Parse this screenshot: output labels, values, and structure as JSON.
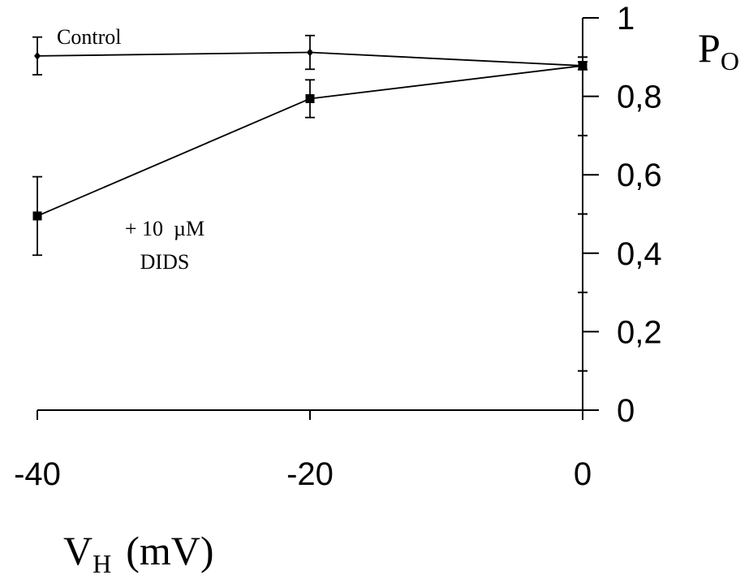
{
  "chart_data": {
    "type": "line",
    "x": [
      -40,
      -20,
      0
    ],
    "xlim": [
      -40,
      0
    ],
    "ylim": [
      0,
      1
    ],
    "x_tick_labels": [
      "-40",
      "-20",
      "0"
    ],
    "y_tick_labels": [
      "0",
      "0,2",
      "0,4",
      "0,6",
      "0,8",
      "1"
    ],
    "xlabel": {
      "main": "V",
      "sub": "H",
      "unit": "(mV)"
    },
    "ylabel": {
      "main": "P",
      "sub": "O"
    },
    "y_axis_side": "right",
    "series": [
      {
        "name": "Control",
        "marker": "diamond",
        "values": [
          0.903,
          0.912,
          0.878
        ],
        "errors": [
          0.048,
          0.043,
          0.01
        ]
      },
      {
        "name": "+ 10 µM DIDS",
        "marker": "square",
        "values": [
          0.495,
          0.794,
          0.878
        ],
        "errors": [
          0.1,
          0.048,
          0.01
        ]
      }
    ],
    "annotations": [
      {
        "text": "Control",
        "series": 0
      },
      {
        "text": "+ 10  µM",
        "series": 1
      },
      {
        "text": "DIDS",
        "series": 1
      }
    ]
  }
}
